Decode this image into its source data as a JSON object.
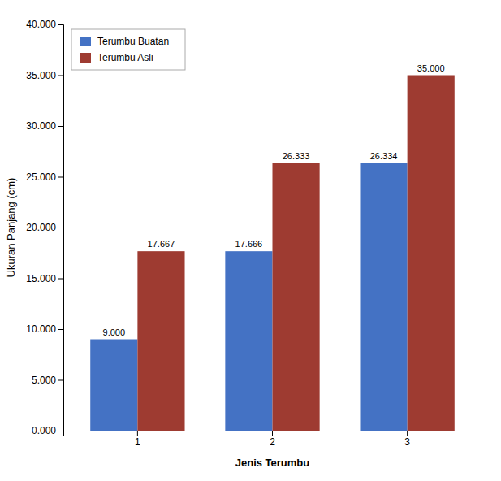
{
  "chart_data": {
    "type": "bar",
    "categories": [
      "1",
      "2",
      "3"
    ],
    "series": [
      {
        "name": "Terumbu Buatan",
        "color": "#4472C4",
        "values": [
          9.0,
          17.666,
          26.334
        ],
        "value_labels": [
          "9.000",
          "17.666",
          "26.334"
        ]
      },
      {
        "name": "Terumbu Asli",
        "color": "#9E3B31",
        "values": [
          17.667,
          26.333,
          35.0
        ],
        "value_labels": [
          "17.667",
          "26.333",
          "35.000"
        ]
      }
    ],
    "xlabel": "Jenis Terumbu",
    "ylabel": "Ukuran Panjang (cm)",
    "ylim": [
      0,
      40
    ],
    "yticks": [
      {
        "value": 0,
        "label": "0.000"
      },
      {
        "value": 5,
        "label": "5.000"
      },
      {
        "value": 10,
        "label": "10.000"
      },
      {
        "value": 15,
        "label": "15.000"
      },
      {
        "value": 20,
        "label": "20.000"
      },
      {
        "value": 25,
        "label": "25.000"
      },
      {
        "value": 30,
        "label": "30.000"
      },
      {
        "value": 35,
        "label": "35.000"
      },
      {
        "value": 40,
        "label": "40.000"
      }
    ],
    "grid": false,
    "legend": "upper left",
    "data_labels": true
  }
}
